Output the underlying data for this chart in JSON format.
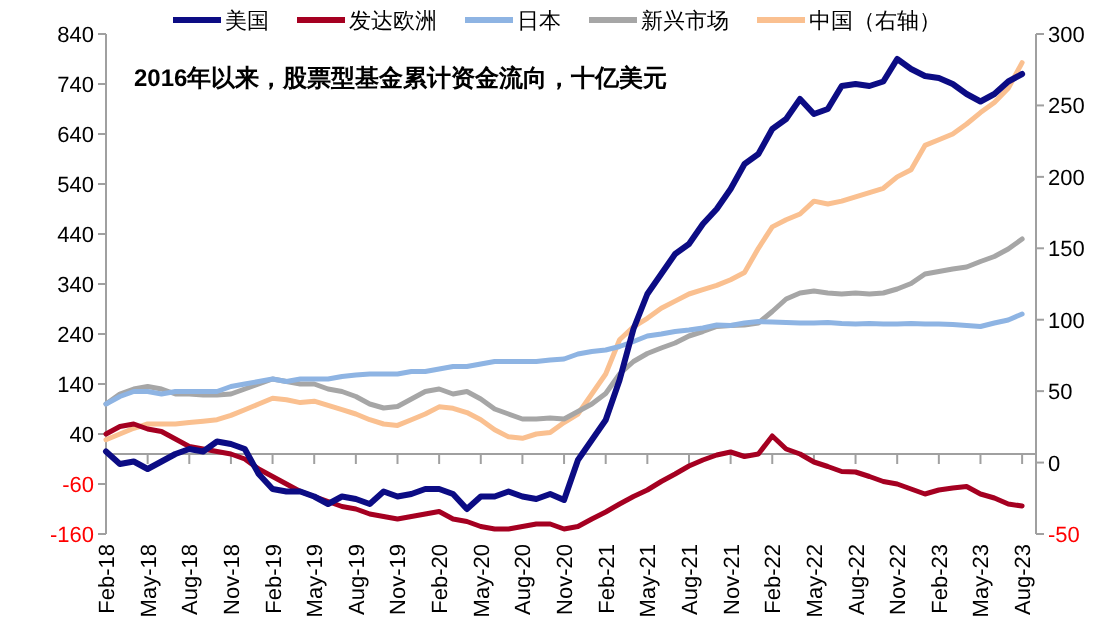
{
  "chart_data": {
    "type": "line",
    "title": "2016年以来，股票型基金累计资金流向，十亿美元",
    "x": [
      "2018-02",
      "2018-03",
      "2018-04",
      "2018-05",
      "2018-06",
      "2018-07",
      "2018-08",
      "2018-09",
      "2018-10",
      "2018-11",
      "2018-12",
      "2019-01",
      "2019-02",
      "2019-03",
      "2019-04",
      "2019-05",
      "2019-06",
      "2019-07",
      "2019-08",
      "2019-09",
      "2019-10",
      "2019-11",
      "2019-12",
      "2020-01",
      "2020-02",
      "2020-03",
      "2020-04",
      "2020-05",
      "2020-06",
      "2020-07",
      "2020-08",
      "2020-09",
      "2020-10",
      "2020-11",
      "2020-12",
      "2021-01",
      "2021-02",
      "2021-03",
      "2021-04",
      "2021-05",
      "2021-06",
      "2021-07",
      "2021-08",
      "2021-09",
      "2021-10",
      "2021-11",
      "2021-12",
      "2022-01",
      "2022-02",
      "2022-03",
      "2022-04",
      "2022-05",
      "2022-06",
      "2022-07",
      "2022-08",
      "2022-09",
      "2022-10",
      "2022-11",
      "2022-12",
      "2023-01",
      "2023-02",
      "2023-03",
      "2023-04",
      "2023-05",
      "2023-06",
      "2023-07",
      "2023-08"
    ],
    "series": [
      {
        "name": "美国",
        "color": "#0c0c84",
        "values": [
          5,
          -20,
          -15,
          -30,
          -15,
          0,
          10,
          5,
          25,
          20,
          10,
          -40,
          -70,
          -75,
          -75,
          -85,
          -100,
          -85,
          -90,
          -100,
          -75,
          -85,
          -80,
          -70,
          -70,
          -80,
          -110,
          -85,
          -85,
          -75,
          -85,
          -90,
          -80,
          -92,
          -12,
          28,
          68,
          148,
          250,
          320,
          360,
          400,
          420,
          460,
          490,
          530,
          580,
          600,
          650,
          670,
          710,
          680,
          690,
          736,
          740,
          736,
          745,
          790,
          770,
          756,
          752,
          740,
          720,
          705,
          720,
          745,
          760
        ]
      },
      {
        "name": "发达欧洲",
        "color": "#a50021",
        "values": [
          40,
          55,
          60,
          50,
          45,
          30,
          15,
          10,
          5,
          0,
          -10,
          -30,
          -45,
          -60,
          -75,
          -85,
          -95,
          -105,
          -110,
          -120,
          -125,
          -130,
          -125,
          -120,
          -115,
          -130,
          -135,
          -145,
          -150,
          -150,
          -145,
          -140,
          -140,
          -150,
          -145,
          -130,
          -116,
          -100,
          -85,
          -72,
          -55,
          -40,
          -24,
          -12,
          -2,
          4,
          -5,
          0,
          36,
          10,
          0,
          -16,
          -25,
          -35,
          -36,
          -45,
          -55,
          -60,
          -70,
          -80,
          -72,
          -68,
          -65,
          -80,
          -88,
          -100,
          -104
        ]
      },
      {
        "name": "日本",
        "color": "#8eb4e3",
        "values": [
          100,
          115,
          125,
          125,
          120,
          125,
          125,
          125,
          125,
          135,
          140,
          145,
          150,
          145,
          150,
          150,
          150,
          155,
          158,
          160,
          160,
          160,
          165,
          165,
          170,
          175,
          175,
          180,
          185,
          185,
          185,
          185,
          188,
          190,
          200,
          205,
          208,
          215,
          225,
          236,
          240,
          245,
          248,
          252,
          258,
          257,
          262,
          265,
          264,
          263,
          262,
          262,
          263,
          261,
          260,
          261,
          260,
          260,
          261,
          260,
          260,
          259,
          257,
          255,
          262,
          268,
          280
        ]
      },
      {
        "name": "新兴市场",
        "color": "#a6a6a6",
        "values": [
          100,
          120,
          130,
          135,
          130,
          120,
          120,
          118,
          118,
          120,
          130,
          140,
          150,
          145,
          140,
          140,
          130,
          125,
          115,
          100,
          92,
          95,
          110,
          125,
          130,
          120,
          125,
          110,
          90,
          80,
          70,
          70,
          72,
          70,
          85,
          100,
          121,
          160,
          185,
          201,
          212,
          222,
          236,
          245,
          255,
          257,
          258,
          262,
          285,
          310,
          322,
          326,
          322,
          320,
          322,
          320,
          322,
          330,
          341,
          360,
          365,
          370,
          374,
          385,
          395,
          410,
          430
        ]
      },
      {
        "name": "中国（右轴）",
        "color": "#fac090",
        "axis": "y2",
        "values": [
          16,
          20,
          24,
          27,
          27,
          27,
          28,
          29,
          30,
          33,
          37,
          41,
          45,
          44,
          42,
          43,
          40,
          37,
          34,
          30,
          27,
          26,
          30,
          34,
          39,
          38,
          35,
          30,
          23,
          18,
          17,
          20,
          21,
          28,
          34,
          48,
          62,
          86,
          95,
          101,
          108,
          113,
          118,
          121,
          124,
          128,
          133,
          150,
          165,
          170,
          174,
          183,
          181,
          183,
          186,
          189,
          192,
          200,
          205,
          222,
          226,
          230,
          237,
          245,
          252,
          262,
          280
        ]
      }
    ],
    "xlim": [
      "2018-02",
      "2023-09"
    ],
    "xticks": [
      {
        "value": "2018-02",
        "label": "Feb-18"
      },
      {
        "value": "2018-05",
        "label": "May-18"
      },
      {
        "value": "2018-08",
        "label": "Aug-18"
      },
      {
        "value": "2018-11",
        "label": "Nov-18"
      },
      {
        "value": "2019-02",
        "label": "Feb-19"
      },
      {
        "value": "2019-05",
        "label": "May-19"
      },
      {
        "value": "2019-08",
        "label": "Aug-19"
      },
      {
        "value": "2019-11",
        "label": "Nov-19"
      },
      {
        "value": "2020-02",
        "label": "Feb-20"
      },
      {
        "value": "2020-05",
        "label": "May-20"
      },
      {
        "value": "2020-08",
        "label": "Aug-20"
      },
      {
        "value": "2020-11",
        "label": "Nov-20"
      },
      {
        "value": "2021-02",
        "label": "Feb-21"
      },
      {
        "value": "2021-05",
        "label": "May-21"
      },
      {
        "value": "2021-08",
        "label": "Aug-21"
      },
      {
        "value": "2021-11",
        "label": "Nov-21"
      },
      {
        "value": "2022-02",
        "label": "Feb-22"
      },
      {
        "value": "2022-05",
        "label": "May-22"
      },
      {
        "value": "2022-08",
        "label": "Aug-22"
      },
      {
        "value": "2022-11",
        "label": "Nov-22"
      },
      {
        "value": "2023-02",
        "label": "Feb-23"
      },
      {
        "value": "2023-05",
        "label": "May-23"
      },
      {
        "value": "2023-08",
        "label": "Aug-23"
      }
    ],
    "ylim": [
      -160,
      840
    ],
    "yticks": [
      -160,
      -60,
      40,
      140,
      240,
      340,
      440,
      540,
      640,
      740,
      840
    ],
    "y2lim": [
      -50,
      300
    ],
    "y2ticks": [
      -50,
      0,
      50,
      100,
      150,
      200,
      250,
      300
    ],
    "legend": "top",
    "grid": false,
    "marker": "none",
    "line_style": "solid"
  }
}
